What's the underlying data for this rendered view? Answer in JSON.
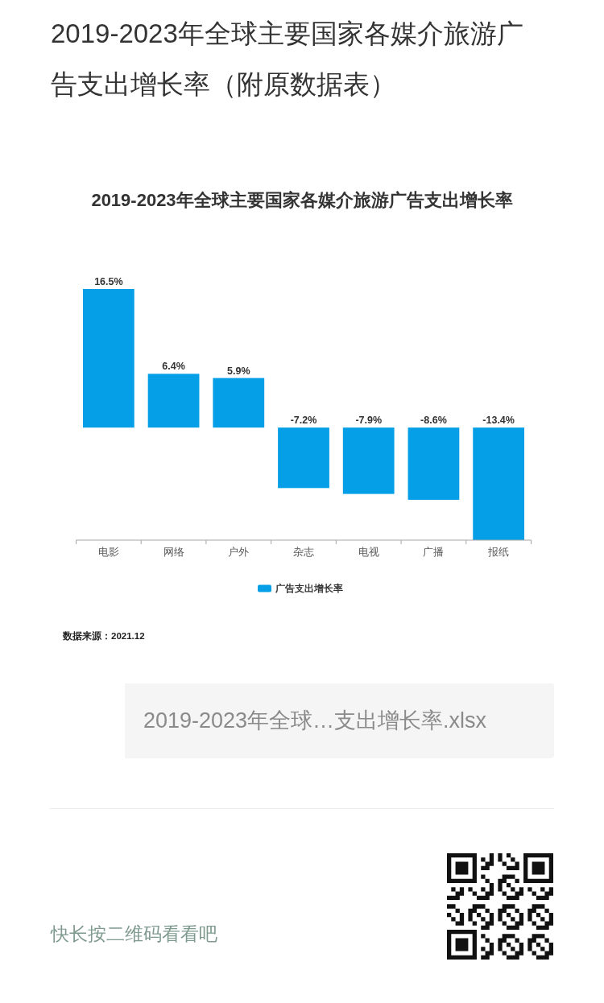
{
  "chart_data": {
    "type": "bar",
    "title": "2019-2023年全球主要国家各媒介旅游广告支出增长率（附原数据表）",
    "subtitle": "2019-2023年全球主要国家各媒介旅游广告支出增长率",
    "categories": [
      "电影",
      "网络",
      "户外",
      "杂志",
      "电视",
      "广播",
      "报纸"
    ],
    "series": [
      {
        "name": "广告支出增长率",
        "color": "#049fe6",
        "values": [
          16.5,
          6.4,
          5.9,
          -7.2,
          -7.9,
          -8.6,
          -13.4
        ],
        "value_labels": [
          "16.5%",
          "6.4%",
          "5.9%",
          "-7.2%",
          "-7.9%",
          "-8.6%",
          "-13.4%"
        ]
      }
    ],
    "legend": "bottom",
    "annotations": [
      "数据来源：2021.12",
      "2019-2023年全球…支出增长率.xlsx",
      "快长按二维码看看吧"
    ]
  }
}
